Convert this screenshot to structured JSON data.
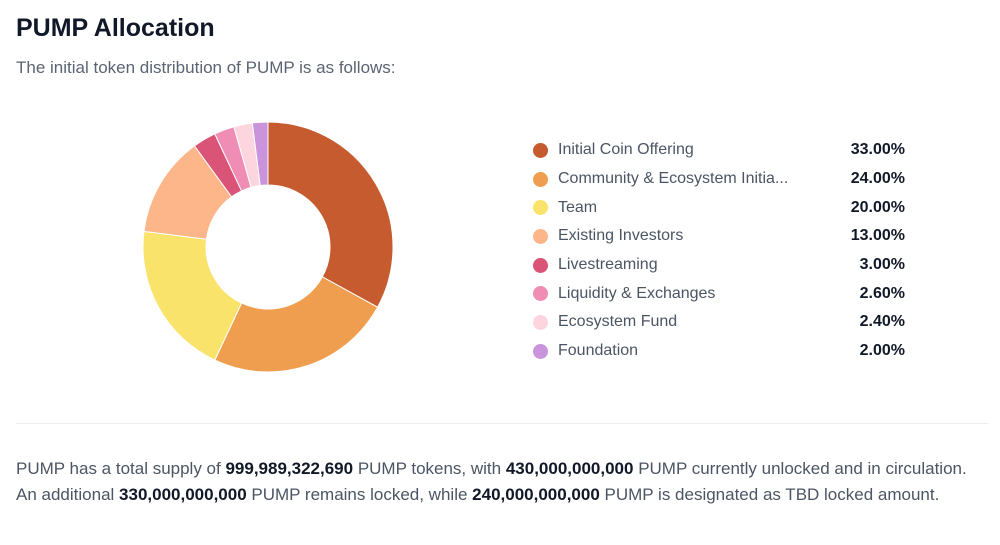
{
  "title": "PUMP Allocation",
  "subtitle": "The initial token distribution of PUMP is as follows:",
  "chart_data": {
    "type": "pie",
    "variant": "donut",
    "legend_position": "right",
    "categories": [
      "Initial Coin Offering",
      "Community & Ecosystem Initia...",
      "Team",
      "Existing Investors",
      "Livestreaming",
      "Liquidity & Exchanges",
      "Ecosystem Fund",
      "Foundation"
    ],
    "values": [
      33.0,
      24.0,
      20.0,
      13.0,
      3.0,
      2.6,
      2.4,
      2.0
    ],
    "labels": [
      "33.00%",
      "24.00%",
      "20.00%",
      "13.00%",
      "3.00%",
      "2.60%",
      "2.40%",
      "2.00%"
    ],
    "colors": [
      "#C75B30",
      "#EF9D4E",
      "#FAE36B",
      "#FDB68A",
      "#DA5477",
      "#F08DB5",
      "#FDD5DF",
      "#C994DC"
    ]
  },
  "summary": {
    "p1": "PUMP has a total supply of ",
    "b1": "999,989,322,690",
    "p2": " PUMP tokens, with ",
    "b2": "430,000,000,000",
    "p3": " PUMP currently unlocked and in circulation. An additional ",
    "b3": "330,000,000,000",
    "p4": " PUMP remains locked, while ",
    "b4": "240,000,000,000",
    "p5": " PUMP is designated as TBD locked amount."
  }
}
